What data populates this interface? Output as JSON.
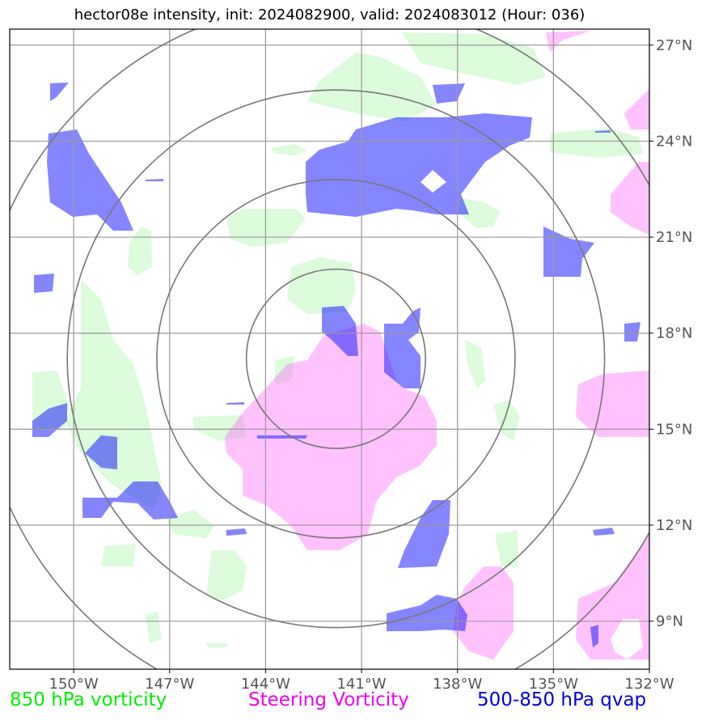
{
  "title": "hector08e intensity, init: 2024082900, valid: 2024083012 (Hour: 036)",
  "map": {
    "lon_range": [
      -152,
      -132
    ],
    "lat_range": [
      7.5,
      27.5
    ],
    "lon_ticks": [
      -150,
      -147,
      -144,
      -141,
      -138,
      -135,
      -132
    ],
    "lat_ticks": [
      27,
      24,
      21,
      18,
      15,
      12,
      9
    ],
    "lon_tick_labels": [
      "150°W",
      "147°W",
      "144°W",
      "141°W",
      "138°W",
      "135°W",
      "132°W"
    ],
    "lat_tick_labels": [
      "27°N",
      "24°N",
      "21°N",
      "18°N",
      "15°N",
      "12°N",
      "9°N"
    ],
    "storm_center": {
      "lon": -141.8,
      "lat": 17.2
    },
    "range_rings_deg": [
      2.8,
      5.6,
      8.4,
      11.2
    ],
    "grid": true
  },
  "layers": {
    "green": {
      "color": "#b8f7b8",
      "opacity": 0.5
    },
    "magenta": {
      "color": "#ff66ff",
      "opacity": 0.4
    },
    "blue": {
      "color": "#2020ff",
      "opacity": 0.55
    }
  },
  "legend": [
    {
      "label": "850 hPa vorticity",
      "color": "#00ee00"
    },
    {
      "label": "Steering Vorticity",
      "color": "#ee00ee"
    },
    {
      "label": "500-850 hPa qvap",
      "color": "#0000dd"
    }
  ]
}
